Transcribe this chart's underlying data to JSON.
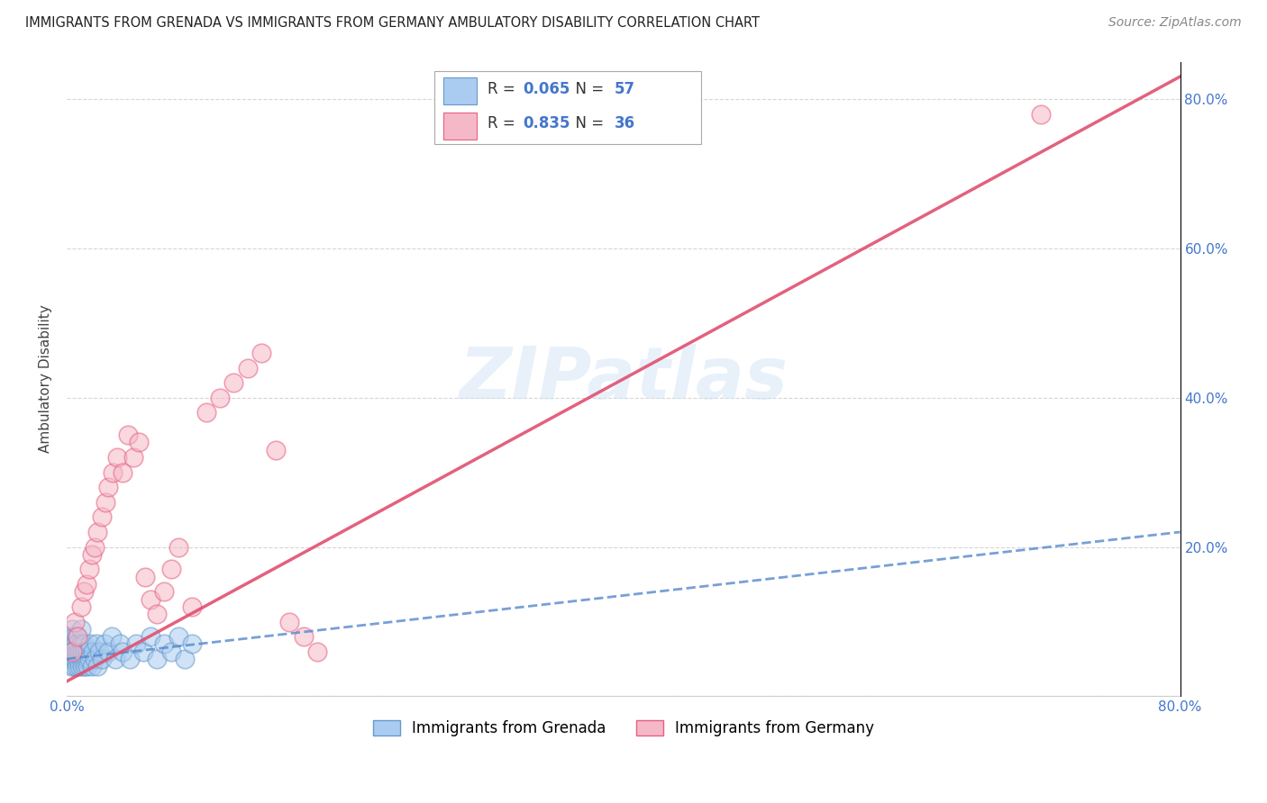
{
  "title": "IMMIGRANTS FROM GRENADA VS IMMIGRANTS FROM GERMANY AMBULATORY DISABILITY CORRELATION CHART",
  "source": "Source: ZipAtlas.com",
  "ylabel": "Ambulatory Disability",
  "legend_label_1": "Immigrants from Grenada",
  "legend_label_2": "Immigrants from Germany",
  "R1": 0.065,
  "N1": 57,
  "R2": 0.835,
  "N2": 36,
  "color_grenada_fill": "#aaccf0",
  "color_grenada_edge": "#6699cc",
  "color_germany_fill": "#f5b8c8",
  "color_germany_edge": "#e86080",
  "color_line_grenada": "#5588cc",
  "color_line_germany": "#e05070",
  "color_text_blue": "#4477cc",
  "background_color": "#ffffff",
  "watermark": "ZIPatlas",
  "xlim": [
    0.0,
    0.8
  ],
  "ylim": [
    0.0,
    0.85
  ],
  "grenada_x": [
    0.001,
    0.002,
    0.002,
    0.003,
    0.003,
    0.004,
    0.004,
    0.004,
    0.005,
    0.005,
    0.005,
    0.006,
    0.006,
    0.007,
    0.007,
    0.007,
    0.008,
    0.008,
    0.009,
    0.009,
    0.01,
    0.01,
    0.01,
    0.011,
    0.011,
    0.012,
    0.012,
    0.013,
    0.013,
    0.014,
    0.015,
    0.015,
    0.016,
    0.017,
    0.018,
    0.019,
    0.02,
    0.021,
    0.022,
    0.023,
    0.025,
    0.027,
    0.03,
    0.032,
    0.035,
    0.038,
    0.04,
    0.045,
    0.05,
    0.055,
    0.06,
    0.065,
    0.07,
    0.075,
    0.08,
    0.085,
    0.09
  ],
  "grenada_y": [
    0.06,
    0.05,
    0.08,
    0.04,
    0.07,
    0.05,
    0.06,
    0.09,
    0.04,
    0.06,
    0.08,
    0.05,
    0.07,
    0.04,
    0.06,
    0.08,
    0.05,
    0.07,
    0.04,
    0.06,
    0.05,
    0.07,
    0.09,
    0.04,
    0.06,
    0.05,
    0.07,
    0.04,
    0.06,
    0.05,
    0.04,
    0.06,
    0.05,
    0.07,
    0.04,
    0.06,
    0.05,
    0.07,
    0.04,
    0.06,
    0.05,
    0.07,
    0.06,
    0.08,
    0.05,
    0.07,
    0.06,
    0.05,
    0.07,
    0.06,
    0.08,
    0.05,
    0.07,
    0.06,
    0.08,
    0.05,
    0.07
  ],
  "germany_x": [
    0.004,
    0.006,
    0.008,
    0.01,
    0.012,
    0.014,
    0.016,
    0.018,
    0.02,
    0.022,
    0.025,
    0.028,
    0.03,
    0.033,
    0.036,
    0.04,
    0.044,
    0.048,
    0.052,
    0.056,
    0.06,
    0.065,
    0.07,
    0.075,
    0.08,
    0.09,
    0.1,
    0.11,
    0.12,
    0.13,
    0.14,
    0.15,
    0.16,
    0.17,
    0.18,
    0.7
  ],
  "germany_y": [
    0.06,
    0.1,
    0.08,
    0.12,
    0.14,
    0.15,
    0.17,
    0.19,
    0.2,
    0.22,
    0.24,
    0.26,
    0.28,
    0.3,
    0.32,
    0.3,
    0.35,
    0.32,
    0.34,
    0.16,
    0.13,
    0.11,
    0.14,
    0.17,
    0.2,
    0.12,
    0.38,
    0.4,
    0.42,
    0.44,
    0.46,
    0.33,
    0.1,
    0.08,
    0.06,
    0.78
  ],
  "line1_x": [
    0.0,
    0.8
  ],
  "line1_y": [
    0.05,
    0.22
  ],
  "line2_x": [
    0.0,
    0.8
  ],
  "line2_y": [
    0.02,
    0.83
  ]
}
